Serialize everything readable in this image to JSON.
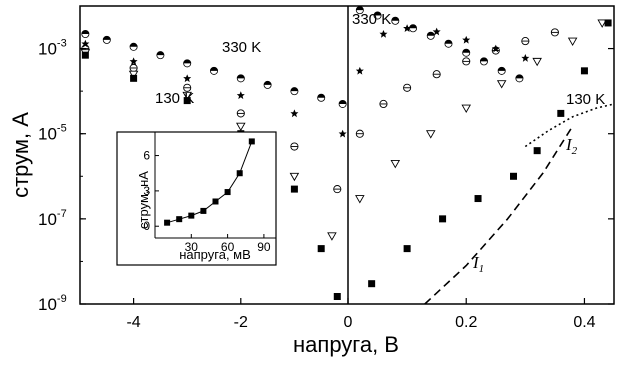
{
  "chart_data": [
    {
      "type": "scatter",
      "panel": "main",
      "ylabel": "струм, А",
      "xlabel": "напруга, В",
      "yscale": "log",
      "ylim": [
        1e-09,
        0.01
      ],
      "y_ticks": [
        {
          "value": 1e-09,
          "mant": "10",
          "exp": "-9"
        },
        {
          "value": 1e-07,
          "mant": "10",
          "exp": "-7"
        },
        {
          "value": 1e-05,
          "mant": "10",
          "exp": "-5"
        },
        {
          "value": 0.001,
          "mant": "10",
          "exp": "-3"
        }
      ],
      "left_x_ticks": [
        "-4",
        "-2",
        "0"
      ],
      "right_x_ticks": [
        "0.2",
        "0.4"
      ],
      "left_xlim": [
        -5,
        0
      ],
      "right_xlim": [
        0,
        0.45
      ],
      "annotations": {
        "temp_high_left": "330 K",
        "temp_low_left": "130 K",
        "temp_high_right": "330 K",
        "temp_low_right": "130 K",
        "curve_i1": "I",
        "curve_i1_sub": "1",
        "curve_i2": "I",
        "curve_i2_sub": "2"
      },
      "series": [
        {
          "marker": "half-circle",
          "left_points": [
            [
              -4.9,
              0.0022
            ],
            [
              -4.5,
              0.0016
            ],
            [
              -4.0,
              0.0011
            ],
            [
              -3.5,
              0.0007
            ],
            [
              -3.0,
              0.00045
            ],
            [
              -2.5,
              0.0003
            ],
            [
              -2.0,
              0.0002
            ],
            [
              -1.5,
              0.00014
            ],
            [
              -1.0,
              0.0001
            ],
            [
              -0.5,
              7e-05
            ],
            [
              -0.1,
              5e-05
            ]
          ],
          "right_points": [
            [
              0.02,
              0.008
            ],
            [
              0.05,
              0.006
            ],
            [
              0.08,
              0.0045
            ],
            [
              0.11,
              0.003
            ],
            [
              0.14,
              0.002
            ],
            [
              0.17,
              0.0013
            ],
            [
              0.2,
              0.0008
            ],
            [
              0.23,
              0.0005
            ],
            [
              0.26,
              0.0003
            ],
            [
              0.29,
              0.0002
            ]
          ]
        },
        {
          "marker": "star",
          "left_points": [
            [
              -4.9,
              0.0013
            ],
            [
              -4.0,
              0.0005
            ],
            [
              -3.0,
              0.0002
            ],
            [
              -2.0,
              8e-05
            ],
            [
              -1.0,
              3e-05
            ],
            [
              -0.1,
              1e-05
            ]
          ],
          "right_points": [
            [
              0.02,
              0.0003
            ],
            [
              0.06,
              0.0022
            ],
            [
              0.1,
              0.003
            ],
            [
              0.15,
              0.0025
            ],
            [
              0.2,
              0.0016
            ],
            [
              0.25,
              0.001
            ],
            [
              0.3,
              0.0006
            ]
          ]
        },
        {
          "marker": "circle-slash",
          "left_points": [
            [
              -4.9,
              0.001
            ],
            [
              -4.0,
              0.00035
            ],
            [
              -3.0,
              0.00012
            ],
            [
              -2.0,
              3e-05
            ],
            [
              -1.0,
              5e-06
            ],
            [
              -0.2,
              5e-07
            ]
          ],
          "right_points": [
            [
              0.02,
              1e-05
            ],
            [
              0.06,
              5e-05
            ],
            [
              0.1,
              0.00012
            ],
            [
              0.15,
              0.00025
            ],
            [
              0.2,
              0.0005
            ],
            [
              0.25,
              0.0009
            ],
            [
              0.3,
              0.0015
            ],
            [
              0.35,
              0.0024
            ]
          ]
        },
        {
          "marker": "triangle",
          "left_points": [
            [
              -4.9,
              0.0008
            ],
            [
              -4.0,
              0.00025
            ],
            [
              -3.0,
              8e-05
            ],
            [
              -2.0,
              1.5e-05
            ],
            [
              -1.0,
              1e-06
            ],
            [
              -0.3,
              4e-08
            ]
          ],
          "right_points": [
            [
              0.02,
              3e-07
            ],
            [
              0.08,
              2e-06
            ],
            [
              0.14,
              1e-05
            ],
            [
              0.2,
              4e-05
            ],
            [
              0.26,
              0.00015
            ],
            [
              0.32,
              0.0005
            ],
            [
              0.38,
              0.0015
            ],
            [
              0.43,
              0.004
            ]
          ]
        },
        {
          "marker": "filled-square",
          "left_points": [
            [
              -4.9,
              0.0007
            ],
            [
              -4.0,
              0.0002
            ],
            [
              -3.0,
              6e-05
            ],
            [
              -2.0,
              1e-05
            ],
            [
              -1.5,
              3e-06
            ],
            [
              -1.0,
              5e-07
            ],
            [
              -0.5,
              2e-08
            ],
            [
              -0.2,
              1.5e-09
            ]
          ],
          "right_points": [
            [
              0.04,
              3e-09
            ],
            [
              0.1,
              2e-08
            ],
            [
              0.16,
              1e-07
            ],
            [
              0.22,
              3e-07
            ],
            [
              0.28,
              1e-06
            ],
            [
              0.32,
              4e-06
            ],
            [
              0.36,
              3e-05
            ],
            [
              0.4,
              0.0003
            ],
            [
              0.44,
              0.004
            ]
          ]
        }
      ],
      "fit_curves": [
        {
          "name": "I1",
          "style": "dashed",
          "points": [
            [
              0.13,
              1e-09
            ],
            [
              0.2,
              8e-09
            ],
            [
              0.27,
              1e-07
            ],
            [
              0.33,
              1.2e-06
            ],
            [
              0.38,
              1.5e-05
            ]
          ]
        },
        {
          "name": "I2",
          "style": "dotted",
          "points": [
            [
              0.3,
              5e-06
            ],
            [
              0.34,
              1.2e-05
            ],
            [
              0.38,
              2.5e-05
            ],
            [
              0.42,
              4e-05
            ],
            [
              0.45,
              5e-05
            ]
          ]
        }
      ]
    },
    {
      "type": "line",
      "panel": "inset",
      "ylabel": "струм, нА",
      "xlabel": "напруга, мВ",
      "xlim": [
        0,
        100
      ],
      "ylim": [
        -1,
        8
      ],
      "x_ticks": [
        "30",
        "60",
        "90"
      ],
      "y_ticks": [
        "0",
        "3",
        "6"
      ],
      "x": [
        10,
        20,
        30,
        40,
        50,
        60,
        70,
        80
      ],
      "values": [
        0.3,
        0.6,
        0.9,
        1.3,
        2.1,
        2.9,
        4.5,
        7.2
      ]
    }
  ]
}
